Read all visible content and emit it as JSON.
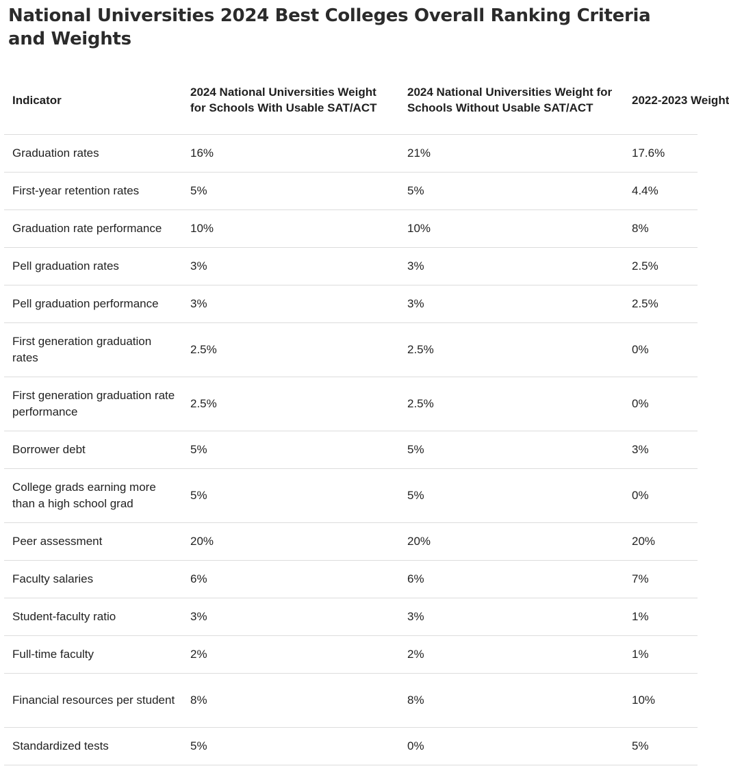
{
  "title": "National Universities 2024 Best Colleges Overall Ranking Criteria and Weights",
  "table": {
    "headers": [
      "Indicator",
      "2024 National Universities Weight for Schools With Usable SAT/ACT",
      "2024 National Universities Weight for Schools Without Usable SAT/ACT",
      "2022-2023 Weight"
    ],
    "rows": [
      [
        "Graduation rates",
        "16%",
        "21%",
        "17.6%"
      ],
      [
        "First-year retention rates",
        "5%",
        "5%",
        "4.4%"
      ],
      [
        "Graduation rate performance",
        "10%",
        "10%",
        "8%"
      ],
      [
        "Pell graduation rates",
        "3%",
        "3%",
        "2.5%"
      ],
      [
        "Pell graduation performance",
        "3%",
        "3%",
        "2.5%"
      ],
      [
        "First generation graduation rates",
        "2.5%",
        "2.5%",
        "0%"
      ],
      [
        "First generation graduation rate performance",
        "2.5%",
        "2.5%",
        "0%"
      ],
      [
        "Borrower debt",
        "5%",
        "5%",
        "3%"
      ],
      [
        "College grads earning more than a high school grad",
        "5%",
        "5%",
        "0%"
      ],
      [
        "Peer assessment",
        "20%",
        "20%",
        "20%"
      ],
      [
        "Faculty salaries",
        "6%",
        "6%",
        "7%"
      ],
      [
        "Student-faculty ratio",
        "3%",
        "3%",
        "1%"
      ],
      [
        "Full-time faculty",
        "2%",
        "2%",
        "1%"
      ],
      [
        "Financial resources per student",
        "8%",
        "8%",
        "10%"
      ],
      [
        "Standardized tests",
        "5%",
        "0%",
        "5%"
      ]
    ]
  }
}
